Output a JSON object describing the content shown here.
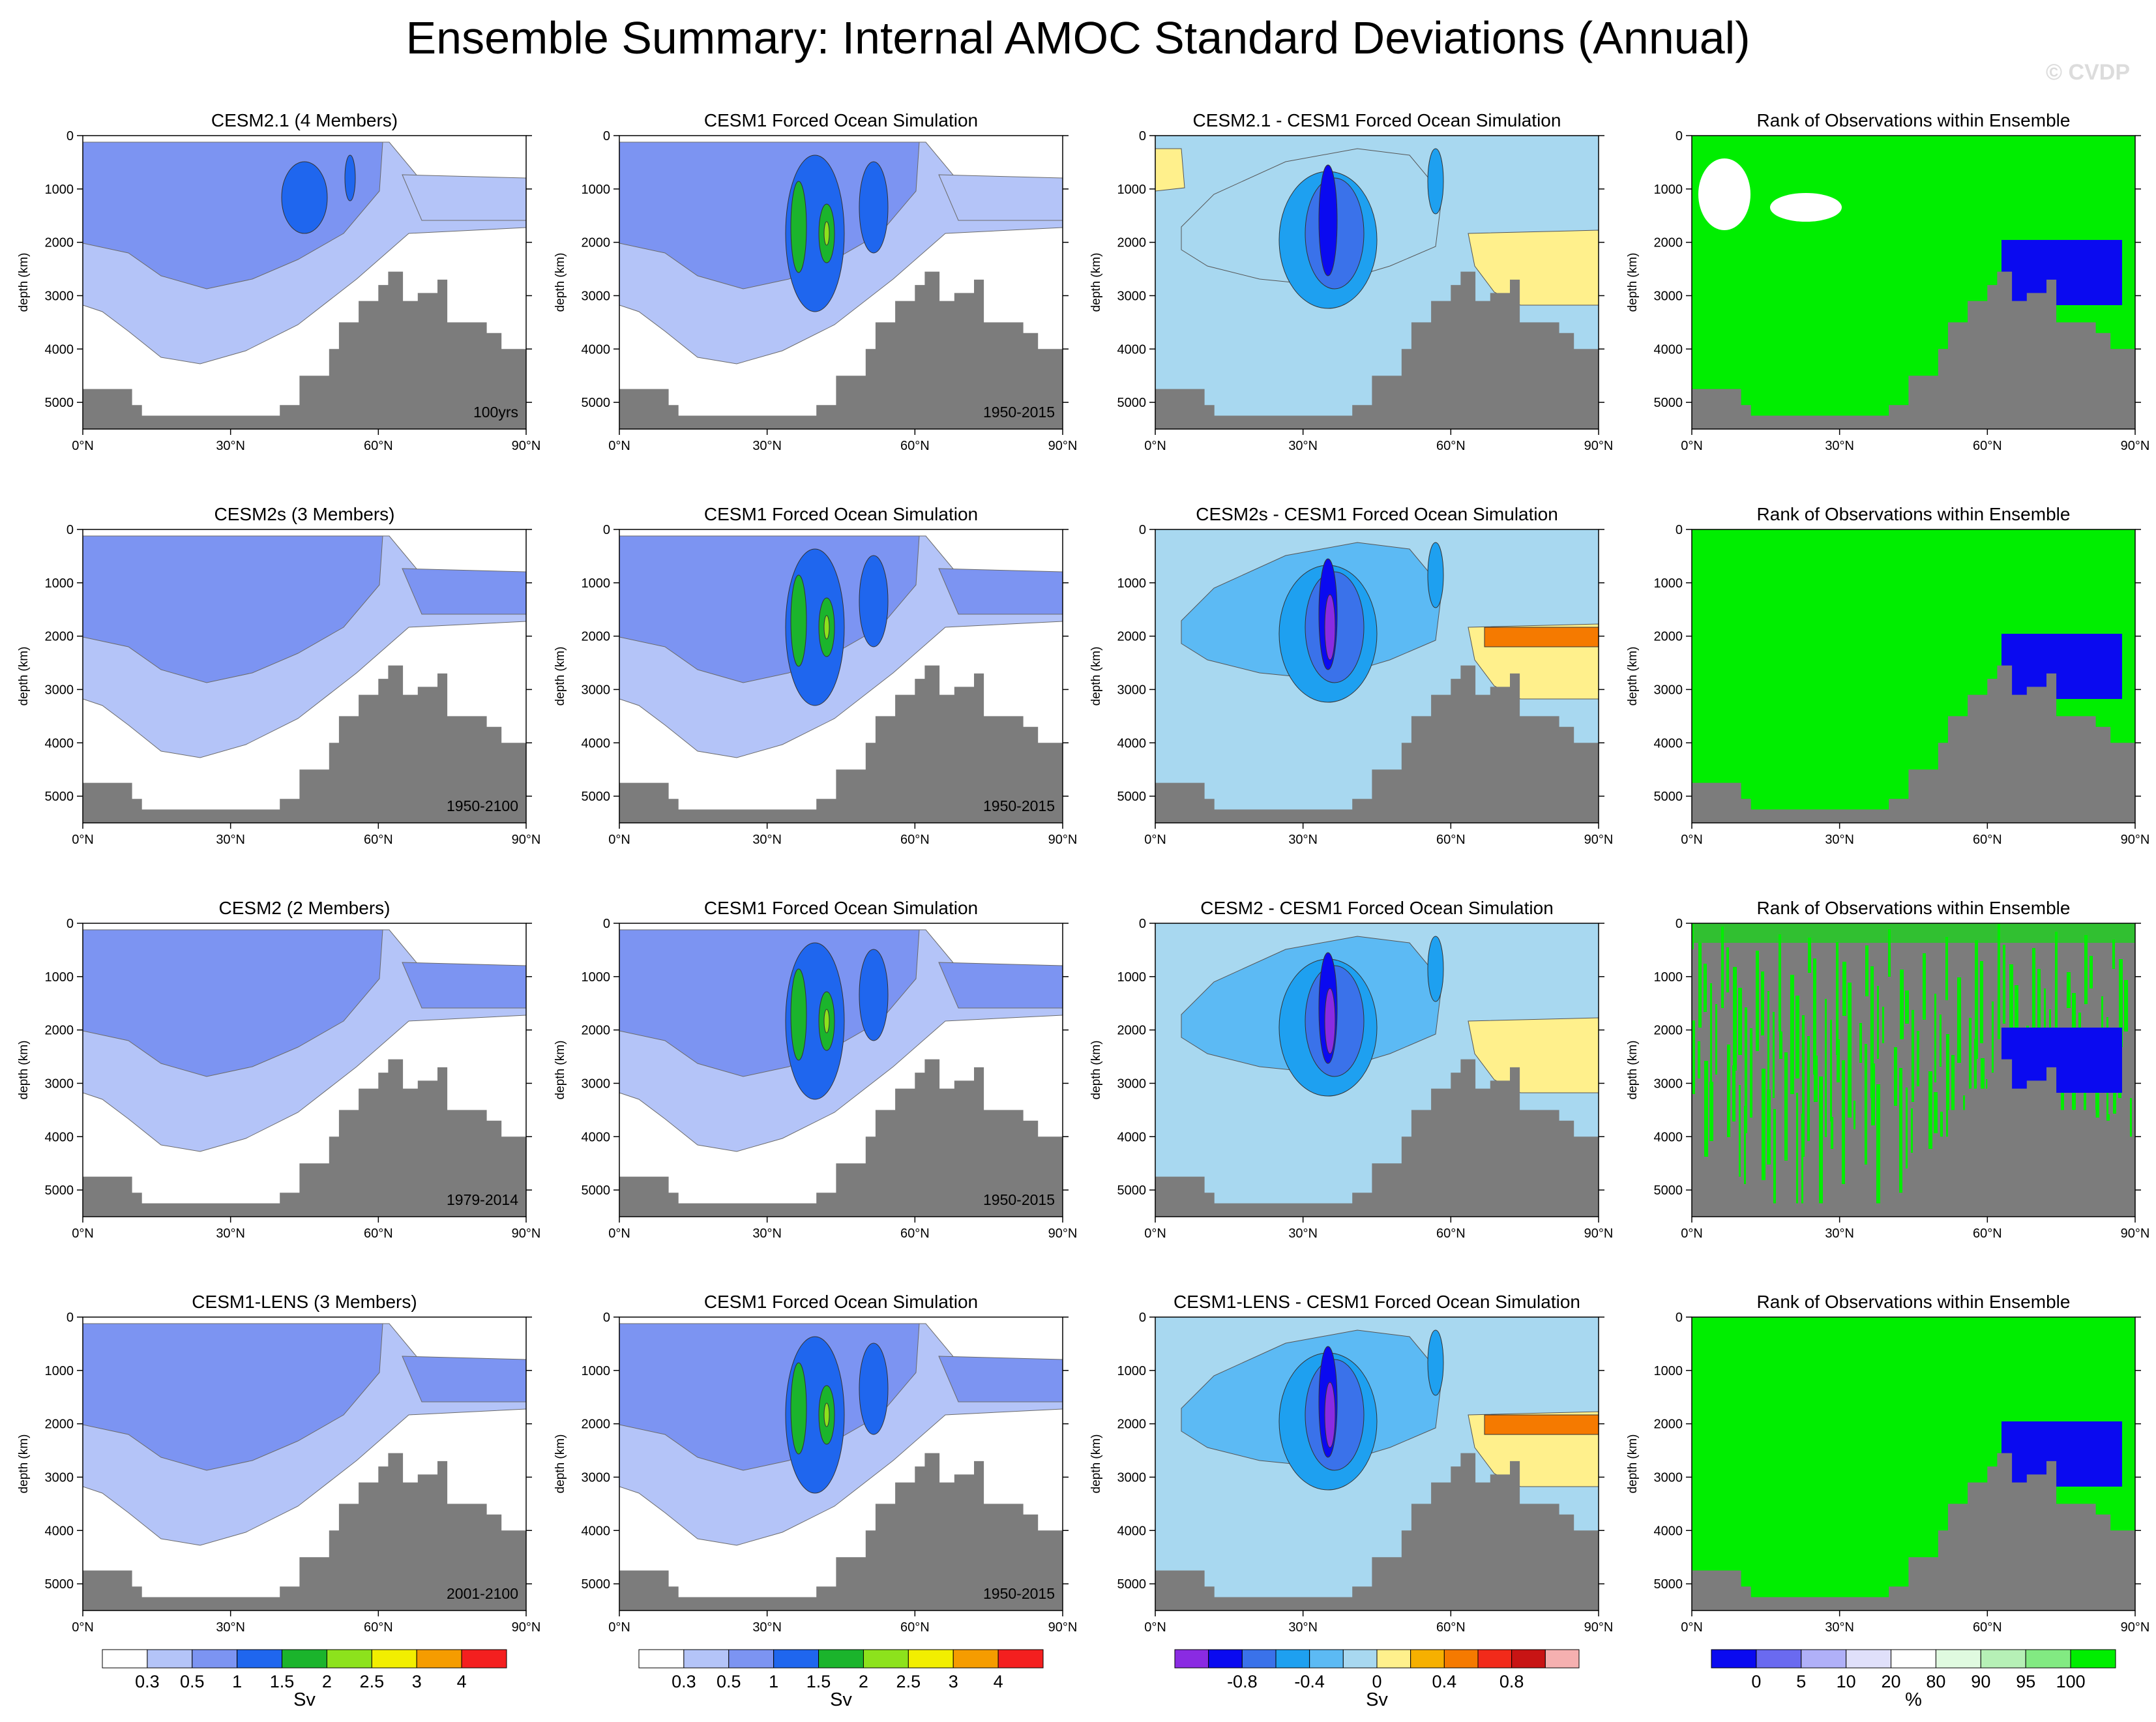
{
  "title": "Ensemble Summary: Internal AMOC Standard Deviations (Annual)",
  "watermark": "© CVDP",
  "chart_data": {
    "type": "contour-panels",
    "axes": {
      "xlabel": "",
      "ylabel": "depth (km)",
      "x_ticks": [
        "0°N",
        "30°N",
        "60°N",
        "90°N"
      ],
      "x_values": [
        0,
        30,
        60,
        90
      ],
      "y_ticks": [
        "0",
        "1000",
        "2000",
        "3000",
        "4000",
        "5000"
      ],
      "y_values": [
        0,
        1000,
        2000,
        3000,
        4000,
        5000
      ],
      "xlim": [
        0,
        90
      ],
      "ylim": [
        5500,
        0
      ]
    },
    "colorbars": [
      {
        "unit": "Sv",
        "labels": [
          "0.3",
          "0.5",
          "1",
          "1.5",
          "2",
          "2.5",
          "3",
          "4"
        ],
        "colors": [
          "#ffffff",
          "#b4c4f8",
          "#7c94f2",
          "#1f66ee",
          "#1bb42c",
          "#8de21c",
          "#f2ee00",
          "#f59c00",
          "#f41f1f"
        ]
      },
      {
        "unit": "Sv",
        "labels": [
          "0.3",
          "0.5",
          "1",
          "1.5",
          "2",
          "2.5",
          "3",
          "4"
        ],
        "colors": [
          "#ffffff",
          "#b4c4f8",
          "#7c94f2",
          "#1f66ee",
          "#1bb42c",
          "#8de21c",
          "#f2ee00",
          "#f59c00",
          "#f41f1f"
        ]
      },
      {
        "unit": "Sv",
        "labels": [
          "-0.8",
          "-0.4",
          "0",
          "0.4",
          "0.8"
        ],
        "colors": [
          "#8a2be2",
          "#0a0af0",
          "#3a72ea",
          "#1ea0f0",
          "#5cbaf4",
          "#a8d8f0",
          "#fff08c",
          "#f6b000",
          "#f57a00",
          "#f22a1a",
          "#c81414",
          "#f5b0b0"
        ]
      },
      {
        "unit": "%",
        "labels": [
          "0",
          "5",
          "10",
          "20",
          "80",
          "90",
          "95",
          "100"
        ],
        "colors": [
          "#0a0af0",
          "#6a6af0",
          "#b0b0f8",
          "#e0e0fa",
          "#ffffff",
          "#e0fae0",
          "#b6f0b6",
          "#82ea82",
          "#00ee00"
        ]
      }
    ],
    "rows": [
      {
        "ensemble": "CESM2.1 (4 Members)",
        "period": "100yrs",
        "panels": [
          {
            "title": "CESM2.1 (4 Members)",
            "kind": "std",
            "period": "100yrs",
            "max_sv": 1.5
          },
          {
            "title": "CESM1 Forced Ocean Simulation",
            "kind": "std",
            "period": "1950-2015",
            "max_sv": 2.5
          },
          {
            "title": "CESM2.1 - CESM1 Forced Ocean Simulation",
            "kind": "diff",
            "range_sv": [
              -0.8,
              0.4
            ]
          },
          {
            "title": "Rank of Observations within Ensemble",
            "kind": "rank"
          }
        ]
      },
      {
        "ensemble": "CESM2s (3 Members)",
        "period": "1950-2100",
        "panels": [
          {
            "title": "CESM2s (3 Members)",
            "kind": "std",
            "period": "1950-2100",
            "max_sv": 1.0
          },
          {
            "title": "CESM1 Forced Ocean Simulation",
            "kind": "std",
            "period": "1950-2015",
            "max_sv": 2.5
          },
          {
            "title": "CESM2s - CESM1 Forced Ocean Simulation",
            "kind": "diff",
            "range_sv": [
              -0.8,
              0.8
            ]
          },
          {
            "title": "Rank of Observations within Ensemble",
            "kind": "rank"
          }
        ]
      },
      {
        "ensemble": "CESM2 (2 Members)",
        "period": "1979-2014",
        "panels": [
          {
            "title": "CESM2 (2 Members)",
            "kind": "std",
            "period": "1979-2014",
            "max_sv": 1.0
          },
          {
            "title": "CESM1 Forced Ocean Simulation",
            "kind": "std",
            "period": "1950-2015",
            "max_sv": 2.5
          },
          {
            "title": "CESM2 - CESM1 Forced Ocean Simulation",
            "kind": "diff",
            "range_sv": [
              -0.8,
              0.4
            ]
          },
          {
            "title": "Rank of Observations within Ensemble",
            "kind": "rank"
          }
        ]
      },
      {
        "ensemble": "CESM1-LENS (3 Members)",
        "period": "2001-2100",
        "panels": [
          {
            "title": "CESM1-LENS (3 Members)",
            "kind": "std",
            "period": "2001-2100",
            "max_sv": 1.0
          },
          {
            "title": "CESM1 Forced Ocean Simulation",
            "kind": "std",
            "period": "1950-2015",
            "max_sv": 2.5
          },
          {
            "title": "CESM1-LENS - CESM1 Forced Ocean Simulation",
            "kind": "diff",
            "range_sv": [
              -0.8,
              0.8
            ]
          },
          {
            "title": "Rank of Observations within Ensemble",
            "kind": "rank"
          }
        ]
      }
    ]
  }
}
